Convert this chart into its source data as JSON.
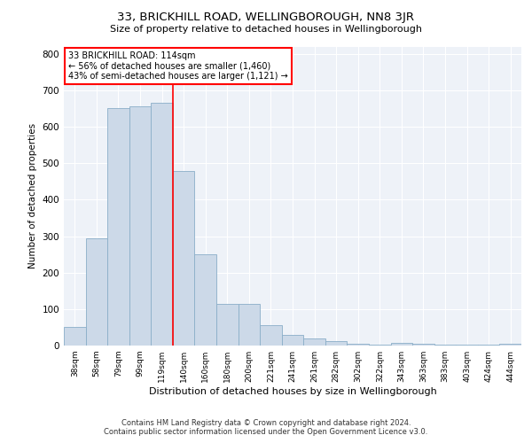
{
  "title": "33, BRICKHILL ROAD, WELLINGBOROUGH, NN8 3JR",
  "subtitle": "Size of property relative to detached houses in Wellingborough",
  "xlabel": "Distribution of detached houses by size in Wellingborough",
  "ylabel": "Number of detached properties",
  "categories": [
    "38sqm",
    "58sqm",
    "79sqm",
    "99sqm",
    "119sqm",
    "140sqm",
    "160sqm",
    "180sqm",
    "200sqm",
    "221sqm",
    "241sqm",
    "261sqm",
    "282sqm",
    "302sqm",
    "322sqm",
    "343sqm",
    "363sqm",
    "383sqm",
    "403sqm",
    "424sqm",
    "444sqm"
  ],
  "values": [
    50,
    295,
    650,
    655,
    665,
    478,
    250,
    115,
    115,
    55,
    30,
    20,
    13,
    5,
    3,
    8,
    5,
    3,
    3,
    3,
    5
  ],
  "bar_color": "#ccd9e8",
  "bar_edge_color": "#8aaec8",
  "highlight_line_index": 4,
  "annotation_text": "33 BRICKHILL ROAD: 114sqm\n← 56% of detached houses are smaller (1,460)\n43% of semi-detached houses are larger (1,121) →",
  "annotation_box_color": "white",
  "annotation_box_edge_color": "red",
  "vline_color": "red",
  "ylim": [
    0,
    820
  ],
  "yticks": [
    0,
    100,
    200,
    300,
    400,
    500,
    600,
    700,
    800
  ],
  "background_color": "#eef2f8",
  "footer_line1": "Contains HM Land Registry data © Crown copyright and database right 2024.",
  "footer_line2": "Contains public sector information licensed under the Open Government Licence v3.0."
}
